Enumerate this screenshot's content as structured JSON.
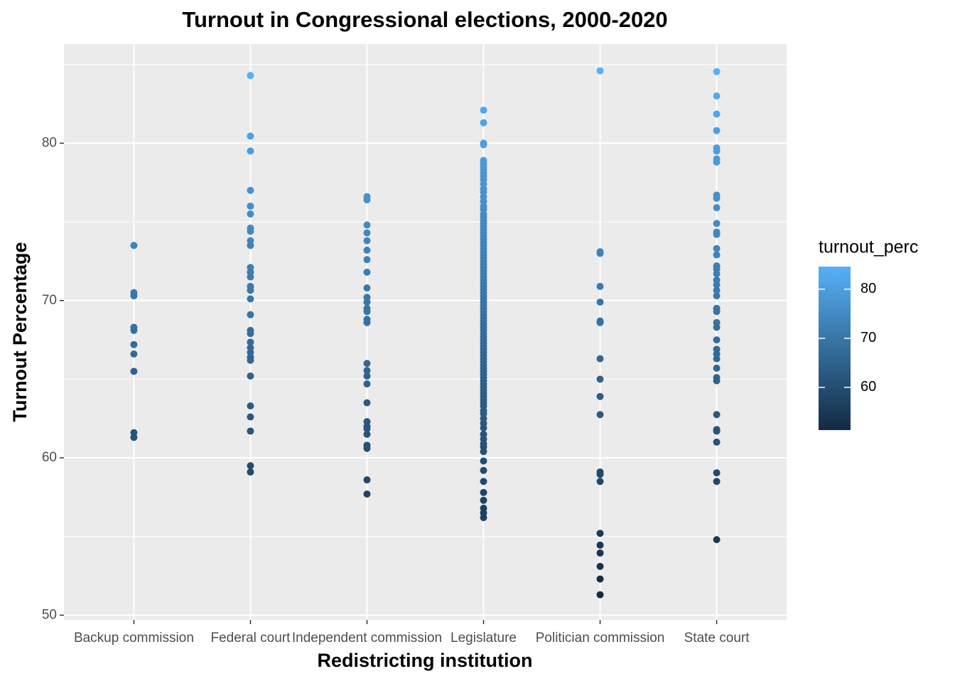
{
  "chart_data": {
    "type": "strip",
    "title": "Turnout in Congressional elections, 2000-2020",
    "x_label": "Redistricting institution",
    "y_label": "Turnout Percentage",
    "categories": [
      "Backup commission",
      "Federal court",
      "Independent commission",
      "Legislature",
      "Politician commission",
      "State court"
    ],
    "values": [
      [
        73.5,
        70.5,
        70.3,
        68.3,
        68.1,
        67.2,
        66.6,
        65.5,
        61.6,
        61.3
      ],
      [
        84.3,
        80.45,
        79.5,
        77.0,
        76.0,
        75.5,
        74.6,
        74.4,
        73.8,
        73.5,
        72.1,
        71.8,
        71.5,
        70.9,
        70.65,
        70.1,
        69.1,
        68.1,
        67.9,
        67.35,
        67.0,
        66.7,
        66.4,
        66.2,
        65.2,
        63.3,
        62.6,
        61.7,
        59.5,
        59.1
      ],
      [
        76.6,
        76.4,
        74.8,
        74.3,
        73.8,
        73.2,
        72.6,
        71.8,
        70.8,
        70.2,
        69.9,
        69.5,
        69.3,
        68.8,
        68.6,
        66.0,
        65.55,
        65.2,
        64.7,
        63.5,
        62.3,
        62.0,
        61.85,
        61.5,
        60.8,
        60.6,
        58.6,
        57.7
      ],
      [
        82.1,
        81.3,
        80.0,
        79.9,
        78.9,
        78.7,
        78.5,
        78.3,
        78.1,
        77.9,
        77.7,
        77.4,
        77.1,
        76.9,
        76.6,
        76.3,
        76.0,
        75.8,
        75.5,
        75.3,
        75.1,
        74.9,
        74.7,
        74.5,
        74.3,
        74.1,
        73.9,
        73.7,
        73.5,
        73.3,
        73.1,
        72.9,
        72.7,
        72.5,
        72.3,
        72.1,
        71.9,
        71.7,
        71.5,
        71.3,
        71.1,
        70.9,
        70.7,
        70.5,
        70.3,
        70.1,
        69.9,
        69.7,
        69.5,
        69.3,
        69.1,
        68.9,
        68.7,
        68.5,
        68.3,
        68.1,
        67.9,
        67.7,
        67.5,
        67.3,
        67.1,
        66.9,
        66.7,
        66.5,
        66.3,
        66.1,
        65.9,
        65.7,
        65.5,
        65.3,
        65.1,
        64.9,
        64.7,
        64.5,
        64.3,
        64.1,
        63.9,
        63.7,
        63.5,
        63.3,
        63.0,
        62.8,
        62.5,
        62.2,
        61.9,
        61.5,
        61.2,
        60.9,
        60.7,
        60.4,
        59.8,
        59.2,
        58.5,
        57.8,
        57.3,
        56.8,
        56.5,
        56.2
      ],
      [
        84.6,
        73.1,
        73.0,
        70.9,
        69.9,
        68.7,
        68.6,
        66.3,
        65.0,
        63.9,
        62.75,
        59.1,
        58.95,
        58.5,
        55.2,
        54.45,
        53.95,
        53.1,
        52.3,
        51.3
      ],
      [
        84.55,
        83.0,
        81.85,
        80.8,
        79.7,
        79.5,
        79.0,
        78.8,
        76.7,
        76.5,
        75.9,
        74.9,
        74.35,
        74.2,
        73.3,
        72.9,
        72.2,
        72.0,
        71.7,
        71.3,
        71.0,
        70.65,
        70.3,
        69.5,
        69.3,
        68.6,
        68.3,
        67.5,
        66.9,
        66.6,
        66.3,
        65.7,
        65.1,
        64.9,
        62.75,
        61.8,
        61.7,
        61.0,
        59.05,
        58.5,
        54.8
      ]
    ],
    "ylim": [
      49.7,
      86.3
    ],
    "yticks": [
      50,
      60,
      70,
      80
    ],
    "yminor": [
      55,
      65,
      75,
      85
    ],
    "grid": true,
    "color_scale": {
      "title": "turnout_perc",
      "low": "#132B43",
      "high": "#56B1F7",
      "limits": [
        51.3,
        84.6
      ],
      "ticks": [
        60,
        70,
        80
      ]
    }
  }
}
